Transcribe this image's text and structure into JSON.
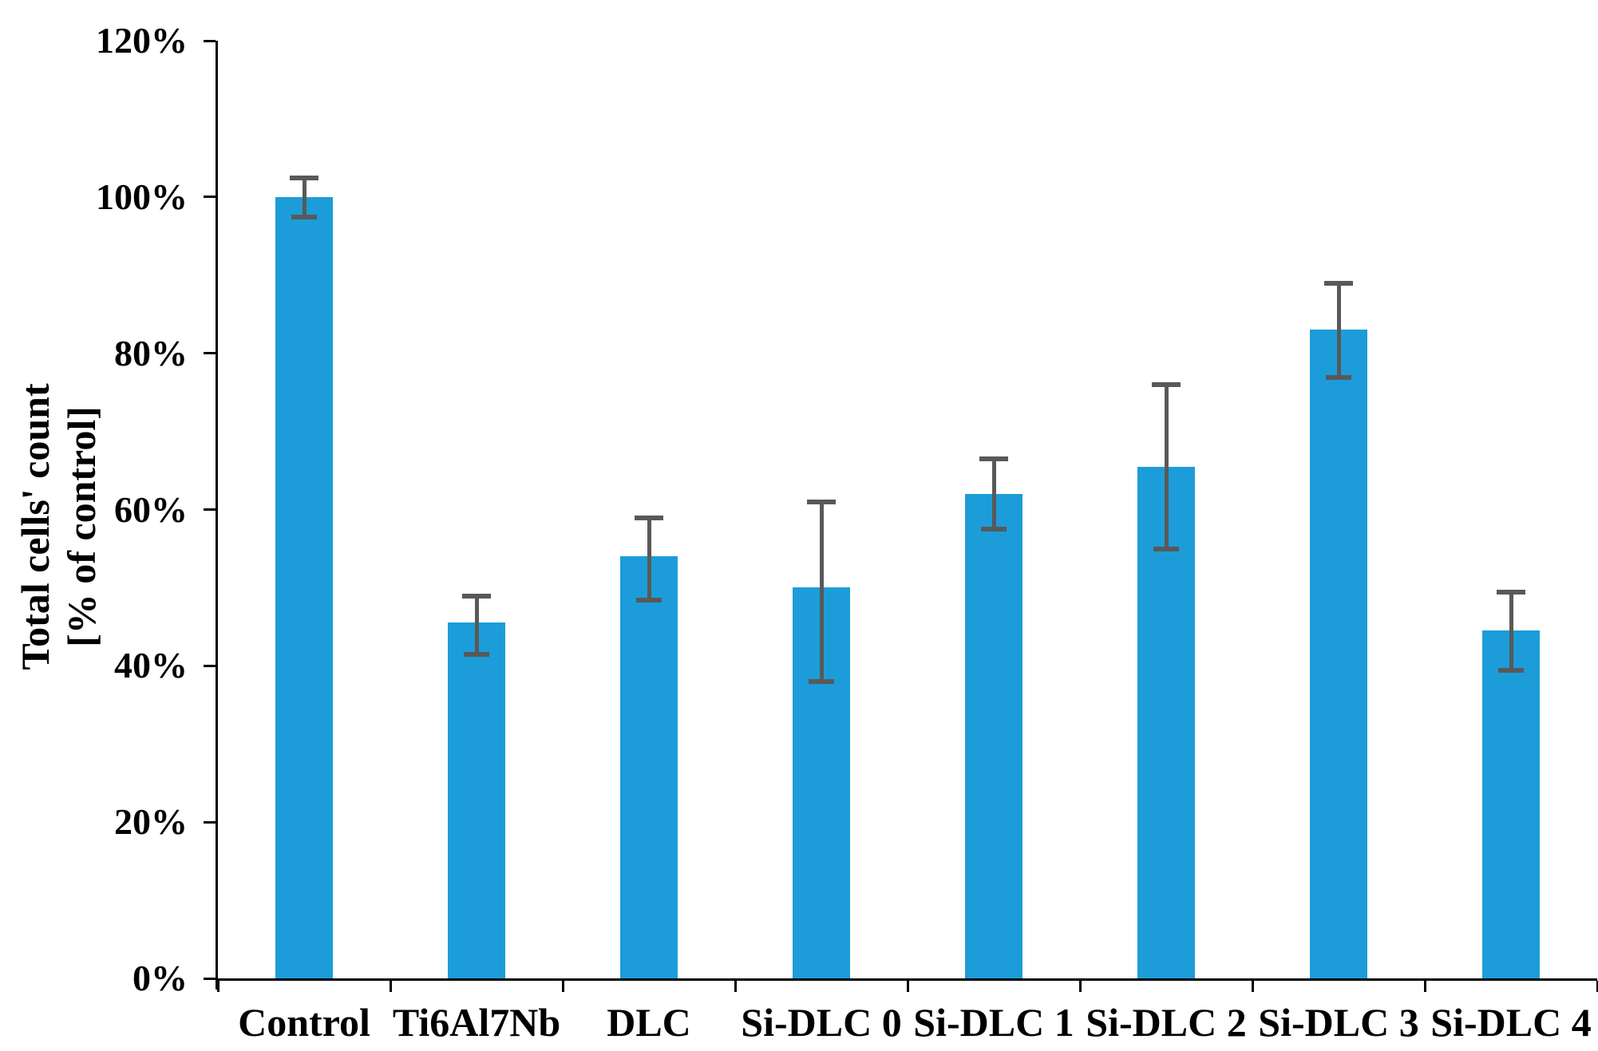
{
  "chart_data": {
    "type": "bar",
    "title": "",
    "categories": [
      "Control",
      "Ti6Al7Nb",
      "DLC",
      "Si-DLC 0",
      "Si-DLC 1",
      "Si-DLC 2",
      "Si-DLC 3",
      "Si-DLC 4"
    ],
    "values": [
      100,
      45.5,
      54,
      50,
      62,
      65.5,
      83,
      44.5
    ],
    "error_low": [
      97.5,
      41.5,
      48.5,
      38,
      57.5,
      55,
      77,
      39.5
    ],
    "error_high": [
      102.5,
      49,
      59,
      61,
      66.5,
      76,
      89,
      49.5
    ],
    "ylabel": "Total cells' count [% of control]",
    "ylabel_lines": [
      "Total cells' count",
      "[% of control]"
    ],
    "xlabel": "",
    "yticks": [
      "0%",
      "20%",
      "40%",
      "60%",
      "80%",
      "100%",
      "120%"
    ],
    "ylim": [
      0,
      120
    ],
    "grid": false,
    "legend": null,
    "bar_color": "#1C9DD9",
    "error_color": "#595959",
    "axis_color": "#000000",
    "text_color": "#000000"
  }
}
